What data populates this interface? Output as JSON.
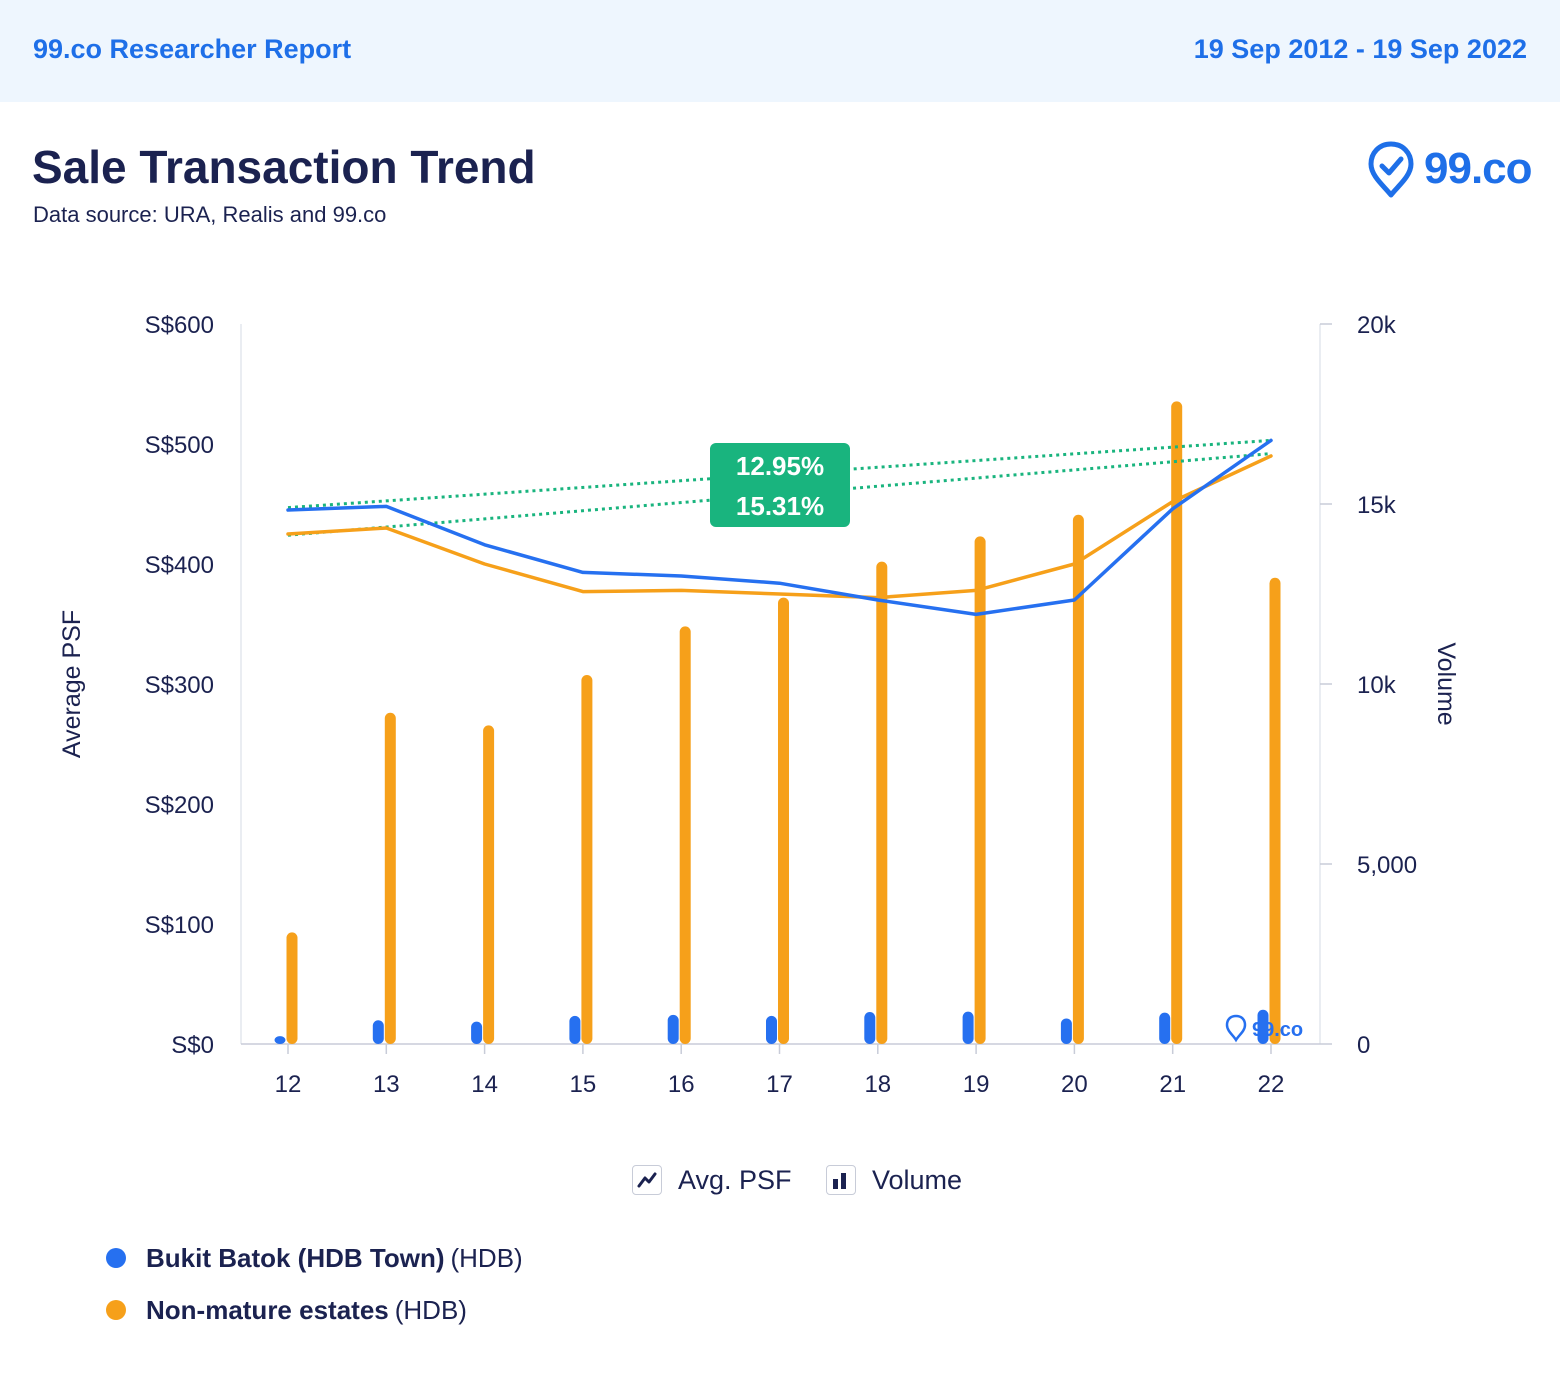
{
  "header": {
    "report_title": "99.co Researcher Report",
    "date_range": "19 Sep 2012 - 19 Sep 2022"
  },
  "title": "Sale Transaction Trend",
  "subtitle": "Data source: URA, Realis and 99.co",
  "logo_text": "99.co",
  "watermark_text": "99.co",
  "toggles": [
    {
      "label": "Avg. PSF",
      "icon": "line-chart-icon"
    },
    {
      "label": "Volume",
      "icon": "bar-chart-icon"
    }
  ],
  "legend": [
    {
      "name": "Bukit Batok (HDB Town)",
      "suffix": "(HDB)",
      "color": "#2670f0"
    },
    {
      "name": "Non-mature estates",
      "suffix": "(HDB)",
      "color": "#f6a01a"
    }
  ],
  "chart_data": {
    "type": "bar",
    "categories": [
      "12",
      "13",
      "14",
      "15",
      "16",
      "17",
      "18",
      "19",
      "20",
      "21",
      "22"
    ],
    "ylabel": "Average PSF",
    "y2label": "Volume",
    "ylim": [
      0,
      600
    ],
    "y2lim": [
      0,
      20000
    ],
    "y_ticks": [
      "S$0",
      "S$100",
      "S$200",
      "S$300",
      "S$400",
      "S$500",
      "S$600"
    ],
    "y2_ticks": [
      "0",
      "5,000",
      "10k",
      "15k",
      "20k"
    ],
    "series": [
      {
        "name": "Bukit Batok (HDB Town)",
        "color": "#2670f0",
        "psf": [
          445,
          448,
          416,
          393,
          390,
          384,
          370,
          358,
          370,
          446,
          503
        ],
        "volume": [
          220,
          660,
          620,
          780,
          810,
          780,
          890,
          900,
          710,
          870,
          950
        ]
      },
      {
        "name": "Non-mature estates",
        "color": "#f6a01a",
        "psf": [
          425,
          430,
          400,
          377,
          378,
          375,
          372,
          378,
          400,
          452,
          490
        ],
        "volume": [
          3100,
          9200,
          8850,
          10250,
          11600,
          12400,
          13400,
          14100,
          14700,
          17850,
          12950
        ]
      }
    ],
    "trend_labels": [
      "12.95%",
      "15.31%"
    ],
    "trend_color": "#19b47e",
    "trends": [
      {
        "psf_start": 447,
        "psf_end": 503
      },
      {
        "psf_start": 424,
        "psf_end": 492
      }
    ],
    "grid": false,
    "legend_position": "bottom-left"
  }
}
